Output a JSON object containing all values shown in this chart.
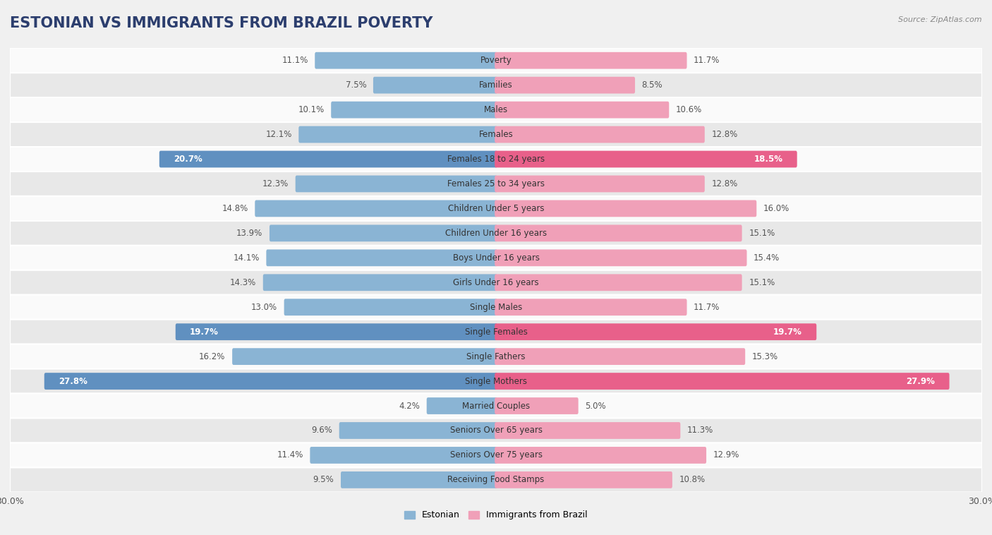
{
  "title": "ESTONIAN VS IMMIGRANTS FROM BRAZIL POVERTY",
  "source": "Source: ZipAtlas.com",
  "categories": [
    "Poverty",
    "Families",
    "Males",
    "Females",
    "Females 18 to 24 years",
    "Females 25 to 34 years",
    "Children Under 5 years",
    "Children Under 16 years",
    "Boys Under 16 years",
    "Girls Under 16 years",
    "Single Males",
    "Single Females",
    "Single Fathers",
    "Single Mothers",
    "Married Couples",
    "Seniors Over 65 years",
    "Seniors Over 75 years",
    "Receiving Food Stamps"
  ],
  "estonian": [
    11.1,
    7.5,
    10.1,
    12.1,
    20.7,
    12.3,
    14.8,
    13.9,
    14.1,
    14.3,
    13.0,
    19.7,
    16.2,
    27.8,
    4.2,
    9.6,
    11.4,
    9.5
  ],
  "brazil": [
    11.7,
    8.5,
    10.6,
    12.8,
    18.5,
    12.8,
    16.0,
    15.1,
    15.4,
    15.1,
    11.7,
    19.7,
    15.3,
    27.9,
    5.0,
    11.3,
    12.9,
    10.8
  ],
  "estonian_color": "#8ab4d4",
  "brazil_color": "#f0a0b8",
  "estonian_highlight_color": "#6090c0",
  "brazil_highlight_color": "#e8608a",
  "highlight_rows": [
    4,
    11,
    13
  ],
  "background_color": "#f0f0f0",
  "row_color_light": "#fafafa",
  "row_color_dark": "#e8e8e8",
  "max_value": 30.0,
  "bar_height": 0.52,
  "title_fontsize": 15,
  "label_fontsize": 8.5,
  "value_fontsize": 8.5,
  "tick_fontsize": 9,
  "legend_fontsize": 9
}
